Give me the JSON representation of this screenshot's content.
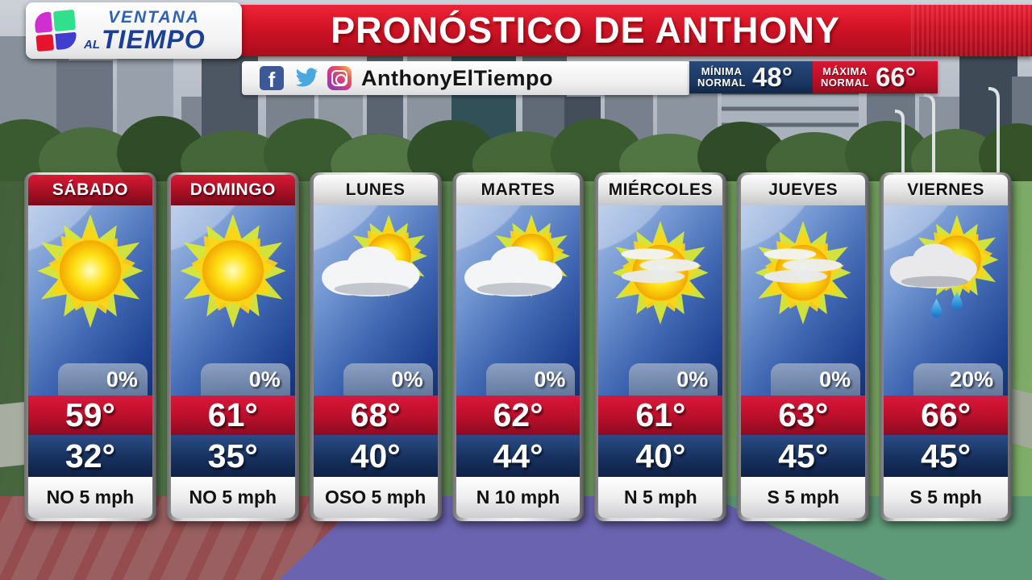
{
  "brand": {
    "line1": "VENTANA",
    "al": "AL",
    "tiempo": "TIEMPO",
    "logo": "univision-logo"
  },
  "header": {
    "title": "PRONÓSTICO DE ANTHONY"
  },
  "social": {
    "handle": "AnthonyElTiempo",
    "icons": [
      "facebook-icon",
      "twitter-icon",
      "instagram-icon"
    ],
    "facebook_glyph": "f"
  },
  "normals": {
    "min": {
      "label_line1": "MÍNIMA",
      "label_line2": "NORMAL",
      "value": "48°"
    },
    "max": {
      "label_line1": "MÁXIMA",
      "label_line2": "NORMAL",
      "value": "66°"
    }
  },
  "colors": {
    "banner_red": "#d01325",
    "weekend_header_red": "#a80f24",
    "temp_high_red": "#bd102c",
    "temp_low_navy": "#17315f",
    "normal_min_navy": "#1a3560",
    "normal_max_red": "#bb0f27",
    "panel_blue": "#2f5bab",
    "precip_badge_gray": "#7e93b4",
    "floor_maroon": "#9a5f60",
    "floor_purple": "#6a63b0",
    "floor_green": "#5f9a78"
  },
  "forecast": {
    "days": [
      {
        "name": "SÁBADO",
        "header_variant": "red",
        "icon": "sunny",
        "precip": "0%",
        "high": "59°",
        "low": "32°",
        "wind": "NO 5 mph"
      },
      {
        "name": "DOMINGO",
        "header_variant": "red",
        "icon": "sunny",
        "precip": "0%",
        "high": "61°",
        "low": "35°",
        "wind": "NO 5 mph"
      },
      {
        "name": "LUNES",
        "header_variant": "light",
        "icon": "mostly-cloudy",
        "precip": "0%",
        "high": "68°",
        "low": "40°",
        "wind": "OSO 5 mph"
      },
      {
        "name": "MARTES",
        "header_variant": "light",
        "icon": "mostly-cloudy",
        "precip": "0%",
        "high": "62°",
        "low": "44°",
        "wind": "N 10 mph"
      },
      {
        "name": "MIÉRCOLES",
        "header_variant": "light",
        "icon": "mostly-sunny",
        "precip": "0%",
        "high": "61°",
        "low": "40°",
        "wind": "N 5 mph"
      },
      {
        "name": "JUEVES",
        "header_variant": "light",
        "icon": "mostly-sunny",
        "precip": "0%",
        "high": "63°",
        "low": "45°",
        "wind": "S 5 mph"
      },
      {
        "name": "VIERNES",
        "header_variant": "light",
        "icon": "sun-rain",
        "precip": "20%",
        "high": "66°",
        "low": "45°",
        "wind": "S 5 mph"
      }
    ]
  }
}
